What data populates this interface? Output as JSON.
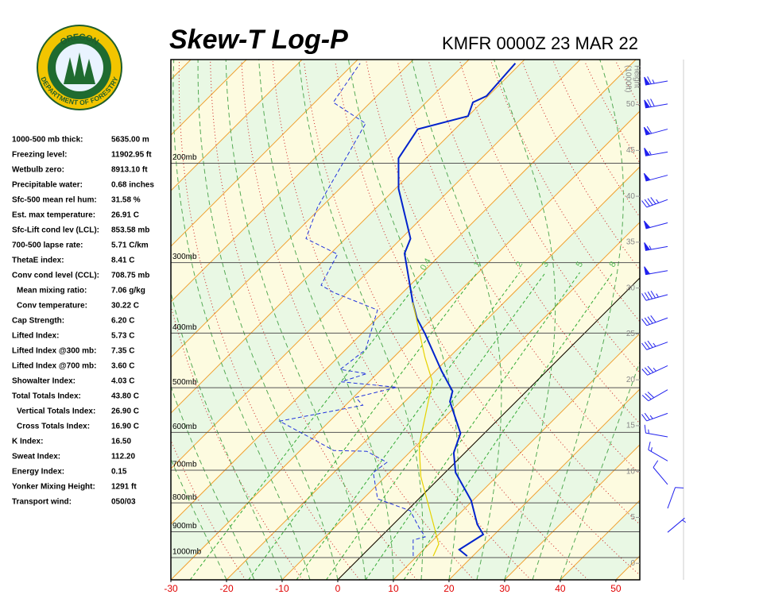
{
  "logo": {
    "top_text": "OREGON",
    "bottom_text": "DEPARTMENT OF FORESTRY"
  },
  "indices": [
    {
      "label": "1000-500 mb thick:",
      "value": "5635.00 m",
      "indent": false
    },
    {
      "label": "Freezing level:",
      "value": "11902.95 ft",
      "indent": false
    },
    {
      "label": "Wetbulb zero:",
      "value": "8913.10 ft",
      "indent": false
    },
    {
      "label": "Precipitable water:",
      "value": "0.68 inches",
      "indent": false
    },
    {
      "label": "Sfc-500 mean rel hum:",
      "value": "31.58 %",
      "indent": false
    },
    {
      "label": "Est. max temperature:",
      "value": "26.91 C",
      "indent": false
    },
    {
      "label": "Sfc-Lift cond lev (LCL):",
      "value": "853.58 mb",
      "indent": false
    },
    {
      "label": "700-500 lapse rate:",
      "value": "5.71 C/km",
      "indent": false
    },
    {
      "label": "ThetaE index:",
      "value": "8.41 C",
      "indent": false
    },
    {
      "label": "Conv cond level (CCL):",
      "value": "708.75 mb",
      "indent": false
    },
    {
      "label": "Mean mixing ratio:",
      "value": "7.06 g/kg",
      "indent": true
    },
    {
      "label": "Conv temperature:",
      "value": "30.22 C",
      "indent": true
    },
    {
      "label": "Cap Strength:",
      "value": "6.20 C",
      "indent": false
    },
    {
      "label": "Lifted Index:",
      "value": "5.73 C",
      "indent": false
    },
    {
      "label": "Lifted Index @300 mb:",
      "value": "7.35 C",
      "indent": false
    },
    {
      "label": "Lifted Index @700 mb:",
      "value": "3.60 C",
      "indent": false
    },
    {
      "label": "Showalter Index:",
      "value": "4.03 C",
      "indent": false
    },
    {
      "label": "Total Totals Index:",
      "value": "43.80 C",
      "indent": false
    },
    {
      "label": "Vertical Totals Index:",
      "value": "26.90 C",
      "indent": true
    },
    {
      "label": "Cross Totals Index:",
      "value": "16.90 C",
      "indent": true
    },
    {
      "label": "K Index:",
      "value": "16.50",
      "indent": false
    },
    {
      "label": "Sweat Index:",
      "value": "112.20",
      "indent": false
    },
    {
      "label": "Energy Index:",
      "value": "0.15",
      "indent": false
    },
    {
      "label": "Yonker Mixing Height:",
      "value": "1291 ft",
      "indent": false
    },
    {
      "label": "Transport wind:",
      "value": "050/03",
      "indent": false
    }
  ],
  "chart_data": {
    "type": "skewt",
    "title": "Skew-T Log-P",
    "subtitle": "KMFR 0000Z 23 MAR 22",
    "xlim": [
      -30,
      54.3
    ],
    "xticks": [
      -30,
      -20,
      -10,
      0,
      10,
      20,
      30,
      40,
      50
    ],
    "plim": [
      1095,
      131
    ],
    "pticks": [
      {
        "value": 1000,
        "label": "1000mb"
      },
      {
        "value": 900,
        "label": "900mb"
      },
      {
        "value": 800,
        "label": "800mb"
      },
      {
        "value": 700,
        "label": "700mb"
      },
      {
        "value": 600,
        "label": "600mb"
      },
      {
        "value": 500,
        "label": "500mb"
      },
      {
        "value": 400,
        "label": "400mb"
      },
      {
        "value": 300,
        "label": "300mb"
      },
      {
        "value": 200,
        "label": "200mb"
      }
    ],
    "y2label": [
      "Height",
      "(1000ft)"
    ],
    "y2lim": [
      -1.8,
      54.9
    ],
    "y2ticks": [
      0,
      5,
      10,
      15,
      20,
      25,
      30,
      35,
      40,
      45,
      50
    ],
    "mixing_ratio_labels": [
      0.4,
      1,
      2,
      3,
      5,
      8
    ],
    "series": [
      {
        "color": "#0022cc",
        "dashed": false,
        "pressure": [
          994,
          968,
          910,
          873,
          792,
          707,
          652,
          602,
          529,
          507,
          467,
          401,
          376,
          353,
          289,
          272,
          222,
          196,
          174,
          165,
          156,
          152,
          133
        ],
        "values": [
          19.0,
          16.4,
          18.0,
          15.1,
          9.7,
          1.9,
          -2.0,
          -4.3,
          -11.9,
          -13.3,
          -18.9,
          -28.6,
          -32.9,
          -36.4,
          -46.7,
          -48.3,
          -59.4,
          -64.9,
          -66.7,
          -60.0,
          -61.6,
          -60.3,
          -61.0
        ]
      },
      {
        "color": "#2233dd",
        "dashed": true,
        "pressure": [
          994,
          931,
          919,
          887,
          826,
          787,
          707,
          678,
          648,
          646,
          621,
          573,
          558,
          537,
          520,
          499,
          488,
          472,
          464,
          428,
          364,
          339,
          329,
          290,
          272,
          239,
          197,
          170,
          156,
          133
        ],
        "values": [
          9.3,
          6.4,
          8.0,
          5.4,
          0.6,
          -7.4,
          -12.9,
          -12.3,
          -17.9,
          -24.0,
          -28.9,
          -39.0,
          -34.0,
          -26.9,
          -29.6,
          -24.0,
          -35.0,
          -31.9,
          -37.4,
          -36.4,
          -41.4,
          -52.4,
          -56.0,
          -58.6,
          -67.1,
          -70.7,
          -74.3,
          -77.1,
          -86.7,
          -88.9
        ]
      },
      {
        "color": "#e6d200",
        "dashed": false,
        "pressure": [
          994,
          946,
          818,
          719,
          632,
          488,
          442,
          353
        ],
        "values": [
          12.9,
          11.7,
          3.6,
          -3.6,
          -9.6,
          -18.6,
          -24.3,
          -36.4
        ]
      }
    ],
    "winds": {
      "color": "#2222ee",
      "pressure": [
        143,
        157,
        174,
        191,
        210,
        232,
        255,
        281,
        310,
        342,
        376,
        415,
        457,
        504,
        555,
        611,
        674,
        742,
        818,
        902
      ],
      "direction": [
        260,
        260,
        255,
        260,
        255,
        250,
        255,
        260,
        260,
        255,
        250,
        250,
        245,
        240,
        250,
        280,
        300,
        320,
        20,
        50
      ],
      "speed": [
        65,
        70,
        60,
        55,
        50,
        45,
        50,
        55,
        50,
        45,
        40,
        35,
        35,
        30,
        25,
        15,
        15,
        10,
        10,
        5
      ]
    }
  }
}
